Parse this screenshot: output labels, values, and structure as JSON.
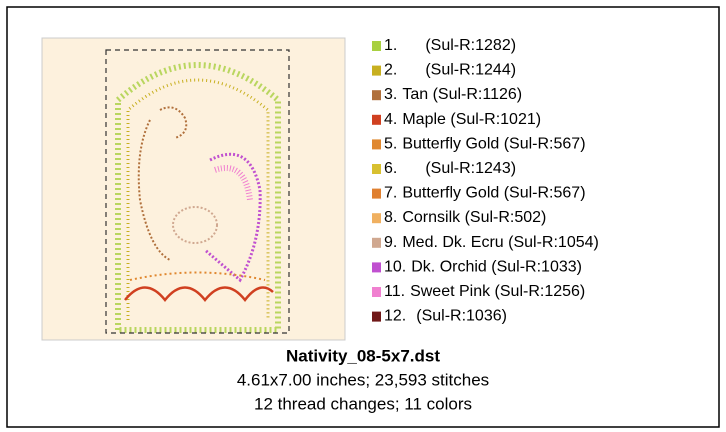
{
  "design": {
    "filename": "Nativity_08-5x7.dst",
    "size_line": "4.61x7.00 inches; 23,593 stitches",
    "changes_line": "12 thread changes; 11 colors",
    "threads": [
      {
        "number": "1.",
        "name": "(Sul-R:1282)",
        "color": "#a8d040"
      },
      {
        "number": "2.",
        "name": "(Sul-R:1244)",
        "color": "#c8b020"
      },
      {
        "number": "3.",
        "name": "Tan (Sul-R:1126)",
        "color": "#b0703c"
      },
      {
        "number": "4.",
        "name": "Maple (Sul-R:1021)",
        "color": "#d04020"
      },
      {
        "number": "5.",
        "name": "Butterfly Gold (Sul-R:567)",
        "color": "#e08830"
      },
      {
        "number": "6.",
        "name": "(Sul-R:1243)",
        "color": "#d8c030"
      },
      {
        "number": "7.",
        "name": "Butterfly Gold (Sul-R:567)",
        "color": "#e08030"
      },
      {
        "number": "8.",
        "name": "Cornsilk (Sul-R:502)",
        "color": "#f0b060"
      },
      {
        "number": "9.",
        "name": "Med. Dk. Ecru (Sul-R:1054)",
        "color": "#d0a890"
      },
      {
        "number": "10.",
        "name": "Dk. Orchid (Sul-R:1033)",
        "color": "#c050d0"
      },
      {
        "number": "11.",
        "name": "Sweet Pink (Sul-R:1256)",
        "color": "#f080d0"
      },
      {
        "number": "12.",
        "name": "(Sul-R:1036)",
        "color": "#701818"
      }
    ]
  }
}
